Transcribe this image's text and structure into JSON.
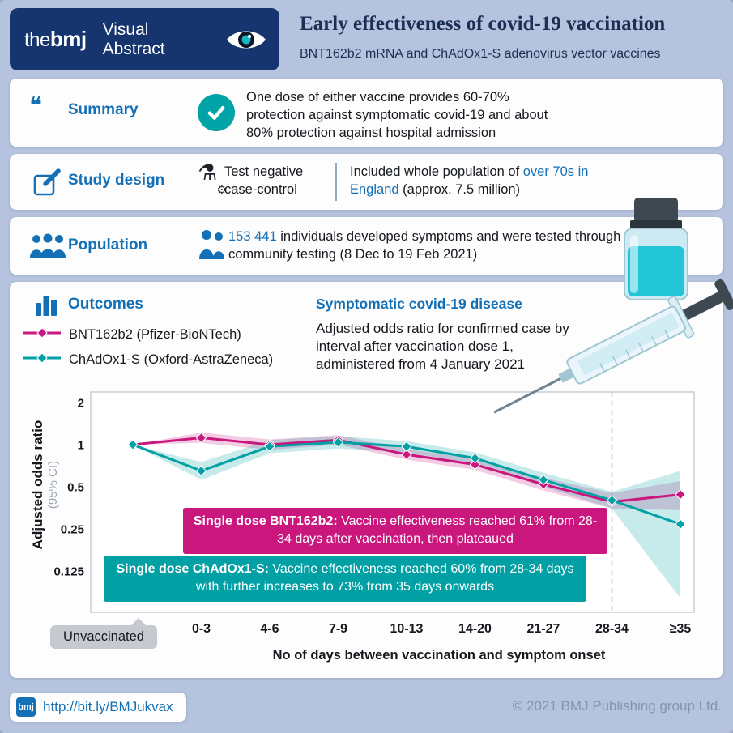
{
  "header": {
    "brand_the": "the",
    "brand_bmj": "bmj",
    "brand_label": "Visual Abstract",
    "title": "Early effectiveness of covid-19 vaccination",
    "subtitle": "BNT162b2 mRNA and ChAdOx1-S adenovirus vector vaccines"
  },
  "summary": {
    "label": "Summary",
    "text": "One dose of either vaccine provides 60-70% protection against symptomatic covid-19 and about 80% protection against hospital admission"
  },
  "study_design": {
    "label": "Study design",
    "method": "Test negative case-control",
    "text_prefix": "Included whole population of ",
    "text_highlight": "over 70s in England",
    "text_suffix": " (approx. 7.5 million)"
  },
  "population": {
    "label": "Population",
    "count": "153 441",
    "text": " individuals developed symptoms and were tested through community testing (8 Dec to 19 Feb 2021)"
  },
  "outcomes": {
    "label": "Outcomes",
    "heading": "Symptomatic covid-19 disease",
    "description": "Adjusted odds ratio for confirmed case by interval after vaccination dose 1, administered from 4 January 2021",
    "legend": [
      {
        "name": "BNT162b2 (Pfizer-BioNTech)"
      },
      {
        "name": "ChAdOx1-S (Oxford-AstraZeneca)"
      }
    ],
    "annotation_bnt": {
      "lead": "Single dose BNT162b2:",
      "rest": " Vaccine effectiveness reached 61% from 28-34 days after vaccination, then plateaued"
    },
    "annotation_chadox": {
      "lead": "Single dose ChAdOx1-S:",
      "rest": " Vaccine effectiveness reached 60% from 28-34 days with further increases to 73% from 35 days onwards"
    },
    "unvaccinated_label": "Unvaccinated",
    "xlabel": "No of days between vaccination and symptom onset",
    "ylabel": "Adjusted odds ratio",
    "ylabel_sub": "(95% CI)"
  },
  "chart_data": {
    "type": "line",
    "title": "Symptomatic covid-19 disease",
    "subtitle": "Adjusted odds ratio for confirmed case by interval after vaccination dose 1, administered from 4 January 2021",
    "categories": [
      "Unvaccinated",
      "0-3",
      "4-6",
      "7-9",
      "10-13",
      "14-20",
      "21-27",
      "28-34",
      "≥35"
    ],
    "xlabel": "No of days between vaccination and symptom onset",
    "ylabel": "Adjusted odds ratio (95% CI)",
    "y_scale": "log2",
    "y_ticks": [
      2,
      1,
      0.5,
      0.25,
      0.125
    ],
    "grid": false,
    "legend_position": "top-left",
    "dashed_line_at_category": "28-34",
    "series": [
      {
        "name": "BNT162b2 (Pfizer-BioNTech)",
        "color": "#c9177e",
        "values": [
          1,
          1.12,
          1.0,
          1.08,
          0.85,
          0.72,
          0.52,
          0.39,
          0.44
        ],
        "ci_upper": [
          1,
          1.22,
          1.09,
          1.17,
          0.93,
          0.79,
          0.58,
          0.45,
          0.55
        ],
        "ci_lower": [
          1,
          1.03,
          0.92,
          1.0,
          0.78,
          0.66,
          0.47,
          0.35,
          0.34
        ]
      },
      {
        "name": "ChAdOx1-S (Oxford-AstraZeneca)",
        "color": "#00a0a4",
        "values": [
          1,
          0.65,
          0.97,
          1.04,
          0.97,
          0.8,
          0.56,
          0.4,
          0.27
        ],
        "ci_upper": [
          1,
          0.75,
          1.08,
          1.15,
          1.06,
          0.88,
          0.63,
          0.46,
          0.65
        ],
        "ci_lower": [
          1,
          0.56,
          0.87,
          0.94,
          0.88,
          0.73,
          0.5,
          0.35,
          0.08
        ]
      }
    ]
  },
  "footer": {
    "logo": "bmj",
    "link": "http://bit.ly/BMJukvax",
    "copyright": "© 2021 BMJ Publishing group Ltd."
  },
  "colors": {
    "background": "#b6c3de",
    "navy": "#16356e",
    "accent_blue": "#1470b6",
    "magenta": "#c9177e",
    "teal": "#00a0a4"
  }
}
